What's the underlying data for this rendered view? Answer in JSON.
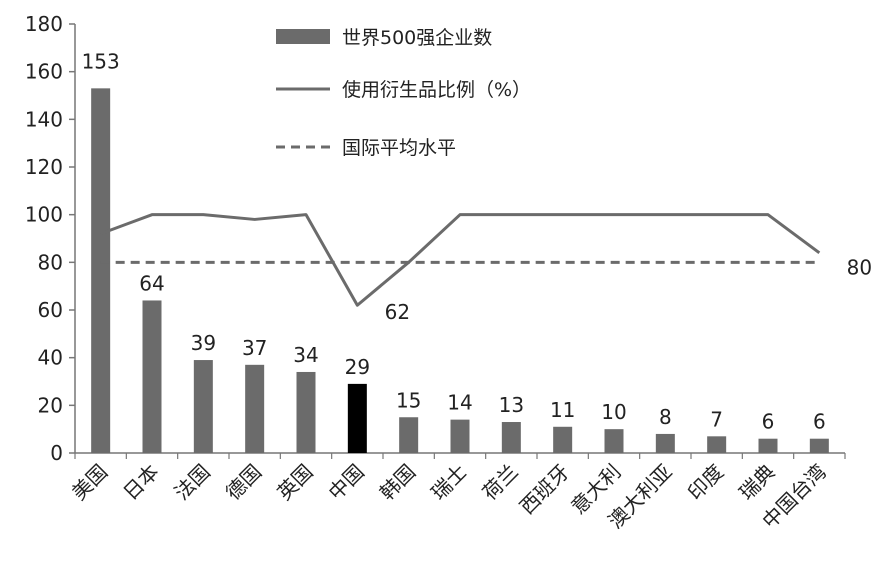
{
  "chart_data": {
    "type": "bar",
    "categories": [
      "美国",
      "日本",
      "法国",
      "德国",
      "英国",
      "中国",
      "韩国",
      "瑞士",
      "荷兰",
      "西班牙",
      "意大利",
      "澳大利亚",
      "印度",
      "瑞典",
      "中国台湾"
    ],
    "series": [
      {
        "name": "世界500强企业数",
        "type": "bar",
        "values": [
          153,
          64,
          39,
          37,
          34,
          29,
          15,
          14,
          13,
          11,
          10,
          8,
          7,
          6,
          6
        ],
        "color": "#6b6b6b",
        "highlight_index": 5,
        "highlight_color": "#000000"
      },
      {
        "name": "使用衍生品比例（%）",
        "type": "line",
        "values": [
          92,
          100,
          100,
          98,
          100,
          62,
          80,
          100,
          100,
          100,
          100,
          100,
          100,
          100,
          84
        ],
        "color": "#6b6b6b"
      },
      {
        "name": "国际平均水平",
        "type": "dashed-line",
        "value": 80,
        "color": "#6b6b6b"
      }
    ],
    "annotations": {
      "line_min_label": "62",
      "average_label": "80"
    },
    "yticks": [
      "0",
      "20",
      "40",
      "60",
      "80",
      "100",
      "120",
      "140",
      "160",
      "180"
    ],
    "ylim": [
      0,
      180
    ],
    "grid": false,
    "legend": "top-center"
  }
}
